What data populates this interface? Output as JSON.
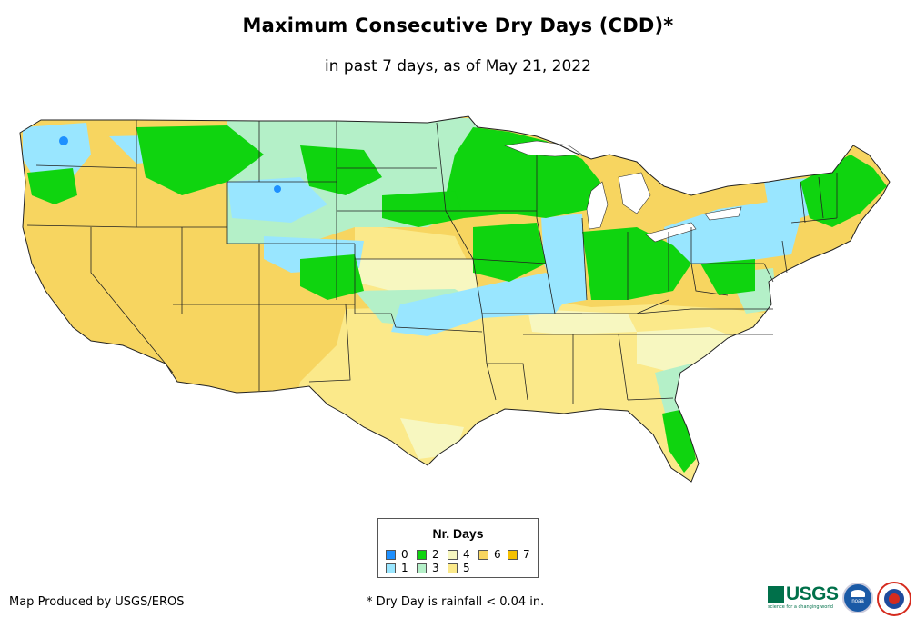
{
  "title": "Maximum Consecutive Dry Days (CDD)*",
  "subtitle": "in past 7 days, as of May 21, 2022",
  "map": {
    "region": "Contiguous United States",
    "colors": {
      "0": "#1e90ff",
      "1": "#99e6ff",
      "2": "#0fd40f",
      "3": "#b4f0c8",
      "4": "#f7f7c0",
      "5": "#fbe98a",
      "6": "#f7d560",
      "7": "#f5c000"
    }
  },
  "legend": {
    "title": "Nr. Days",
    "items": [
      {
        "label": "0",
        "color": "#1e90ff"
      },
      {
        "label": "1",
        "color": "#99e6ff"
      },
      {
        "label": "2",
        "color": "#0fd40f"
      },
      {
        "label": "3",
        "color": "#b4f0c8"
      },
      {
        "label": "4",
        "color": "#f7f7c0"
      },
      {
        "label": "5",
        "color": "#fbe98a"
      },
      {
        "label": "6",
        "color": "#f7d560"
      },
      {
        "label": "7",
        "color": "#f5c000"
      }
    ]
  },
  "footer": {
    "credit": "Map Produced by USGS/EROS",
    "note": "* Dry Day is rainfall < 0.04 in."
  },
  "logos": {
    "usgs": "USGS",
    "usgs_tagline": "science for a changing world",
    "noaa": "noaa"
  }
}
